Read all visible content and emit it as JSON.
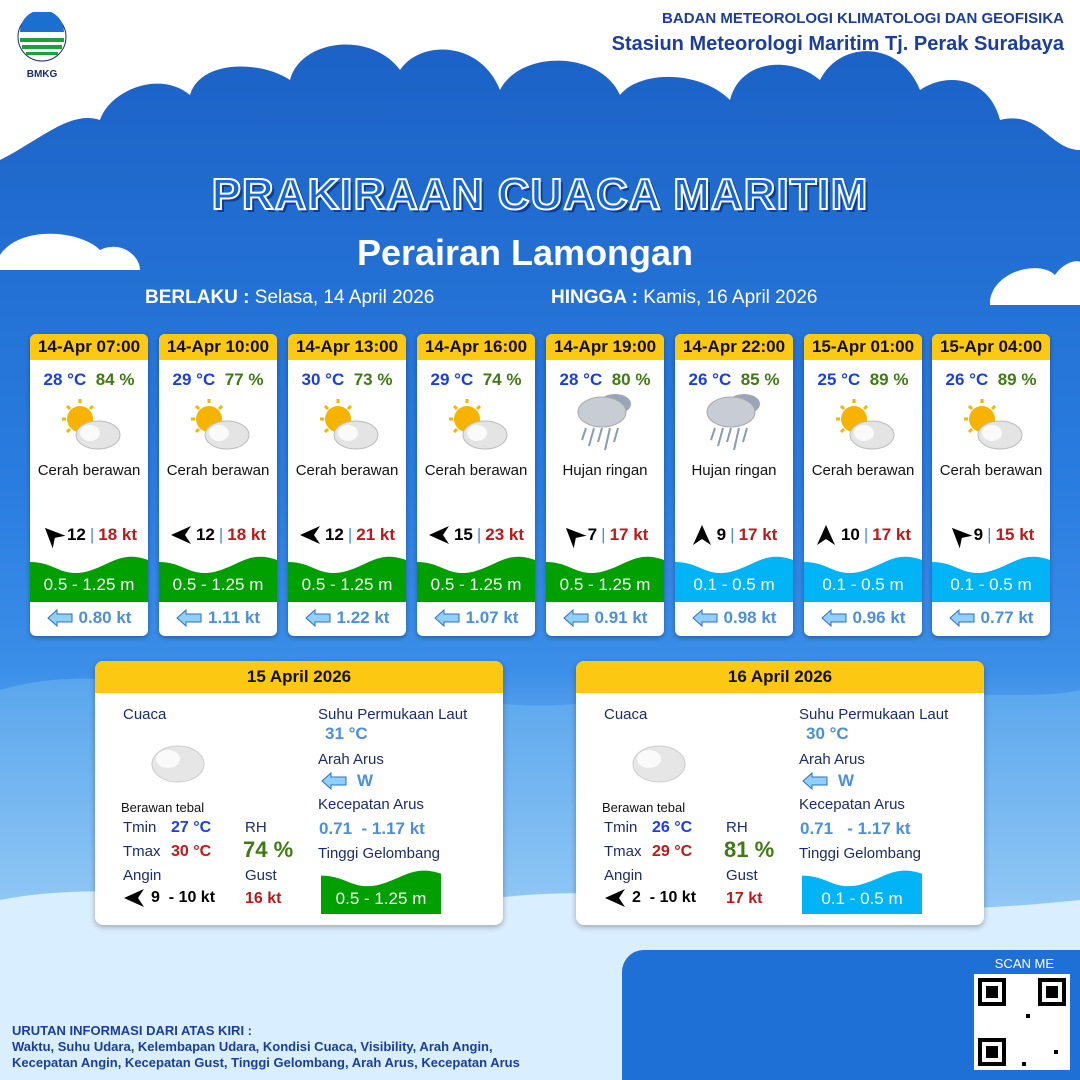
{
  "header": {
    "logo_text": "BMKG",
    "org": "BADAN METEOROLOGI KLIMATOLOGI DAN GEOFISIKA",
    "station": "Stasiun Meteorologi Maritim Tj. Perak Surabaya"
  },
  "title": "PRAKIRAAN CUACA MARITIM",
  "subtitle": "Perairan Lamongan",
  "validity": {
    "from_label": "BERLAKU :",
    "from": "Selasa, 14 April 2026",
    "to_label": "HINGGA :",
    "to": "Kamis, 16 April 2026"
  },
  "colors": {
    "wave_moderate": "#00a000",
    "wave_low": "#00b4f5",
    "header_yellow": "#fcc812"
  },
  "forecasts": [
    {
      "time": "14-Apr 07:00",
      "temp": "28 °C",
      "rh": "84 %",
      "icon": "sun-cloud-icon",
      "weather": "Cerah berawan",
      "wind_dir": "NW",
      "wind": "12",
      "gust": "18 kt",
      "wave": "0.5 - 1.25 m",
      "wave_level": "moderate",
      "current": "0.80 kt"
    },
    {
      "time": "14-Apr 10:00",
      "temp": "29 °C",
      "rh": "77 %",
      "icon": "sun-cloud-icon",
      "weather": "Cerah berawan",
      "wind_dir": "W",
      "wind": "12",
      "gust": "18 kt",
      "wave": "0.5 - 1.25 m",
      "wave_level": "moderate",
      "current": "1.11 kt"
    },
    {
      "time": "14-Apr 13:00",
      "temp": "30 °C",
      "rh": "73 %",
      "icon": "sun-cloud-icon",
      "weather": "Cerah berawan",
      "wind_dir": "W",
      "wind": "12",
      "gust": "21 kt",
      "wave": "0.5 - 1.25 m",
      "wave_level": "moderate",
      "current": "1.22 kt"
    },
    {
      "time": "14-Apr 16:00",
      "temp": "29 °C",
      "rh": "74 %",
      "icon": "sun-cloud-icon",
      "weather": "Cerah berawan",
      "wind_dir": "W",
      "wind": "15",
      "gust": "23 kt",
      "wave": "0.5 - 1.25 m",
      "wave_level": "moderate",
      "current": "1.07 kt"
    },
    {
      "time": "14-Apr 19:00",
      "temp": "28 °C",
      "rh": "80 %",
      "icon": "rain-cloud-icon",
      "weather": "Hujan ringan",
      "wind_dir": "NW",
      "wind": "7",
      "gust": "17 kt",
      "wave": "0.5 - 1.25 m",
      "wave_level": "moderate",
      "current": "0.91 kt"
    },
    {
      "time": "14-Apr 22:00",
      "temp": "26 °C",
      "rh": "85 %",
      "icon": "rain-cloud-icon",
      "weather": "Hujan ringan",
      "wind_dir": "N",
      "wind": "9",
      "gust": "17 kt",
      "wave": "0.1 - 0.5 m",
      "wave_level": "low",
      "current": "0.98 kt"
    },
    {
      "time": "15-Apr 01:00",
      "temp": "25 °C",
      "rh": "89 %",
      "icon": "sun-cloud-icon",
      "weather": "Cerah berawan",
      "wind_dir": "N",
      "wind": "10",
      "gust": "17 kt",
      "wave": "0.1 - 0.5 m",
      "wave_level": "low",
      "current": "0.96 kt"
    },
    {
      "time": "15-Apr 04:00",
      "temp": "26 °C",
      "rh": "89 %",
      "icon": "sun-cloud-icon",
      "weather": "Cerah berawan",
      "wind_dir": "NW",
      "wind": "9",
      "gust": "15 kt",
      "wave": "0.1 - 0.5 m",
      "wave_level": "low",
      "current": "0.77 kt"
    }
  ],
  "daily": [
    {
      "date": "15 April 2026",
      "weather_label": "Cuaca",
      "weather": "Berawan tebal",
      "tmin_label": "Tmin",
      "tmin": "27 °C",
      "tmax_label": "Tmax",
      "tmax": "30 °C",
      "rh_label": "RH",
      "rh": "74 %",
      "wind_label": "Angin",
      "wind": "9  - 10 kt",
      "gust_label": "Gust",
      "gust": "16 kt",
      "sst_label": "Suhu Permukaan Laut",
      "sst": "31 °C",
      "current_dir_label": "Arah Arus",
      "current_dir": "W",
      "current_speed_label": "Kecepatan Arus",
      "current_speed": "0.71  - 1.17 kt",
      "wave_label": "Tinggi Gelombang",
      "wave": "0.5 - 1.25 m",
      "wave_level": "moderate"
    },
    {
      "date": "16 April 2026",
      "weather_label": "Cuaca",
      "weather": "Berawan tebal",
      "tmin_label": "Tmin",
      "tmin": "26 °C",
      "tmax_label": "Tmax",
      "tmax": "29 °C",
      "rh_label": "RH",
      "rh": "81 %",
      "wind_label": "Angin",
      "wind": "2  - 10 kt",
      "gust_label": "Gust",
      "gust": "17 kt",
      "sst_label": "Suhu Permukaan Laut",
      "sst": "30 °C",
      "current_dir_label": "Arah Arus",
      "current_dir": "W",
      "current_speed_label": "Kecepatan Arus",
      "current_speed": "0.71   - 1.17 kt",
      "wave_label": "Tinggi Gelombang",
      "wave": "0.1 - 0.5 m",
      "wave_level": "low"
    }
  ],
  "scan_label": "SCAN ME",
  "footer": {
    "heading": "URUTAN INFORMASI DARI ATAS KIRI :",
    "line1": "Waktu, Suhu Udara, Kelembapan Udara, Kondisi Cuaca, Visibility, Arah Angin,",
    "line2": "Kecepatan Angin, Kecepatan Gust, Tinggi Gelombang, Arah Arus, Kecepatan Arus"
  }
}
